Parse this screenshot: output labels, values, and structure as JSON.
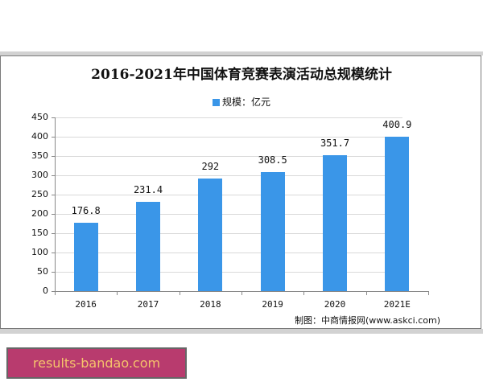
{
  "chart_data": {
    "type": "bar",
    "title": "2016-2021年中国体育竞赛表演活动总规模统计",
    "legend": [
      "规模：亿元"
    ],
    "legend_position": "top",
    "categories": [
      "2016",
      "2017",
      "2018",
      "2019",
      "2020",
      "2021E"
    ],
    "series": [
      {
        "name": "规模：亿元",
        "values": [
          176.8,
          231.4,
          292,
          308.5,
          351.7,
          400.9
        ]
      }
    ],
    "value_labels": [
      "176.8",
      "231.4",
      "292",
      "308.5",
      "351.7",
      "400.9"
    ],
    "xlabel": "",
    "ylabel": "",
    "ylim": [
      0,
      450
    ],
    "yticks": [
      "0",
      "50",
      "100",
      "150",
      "200",
      "250",
      "300",
      "350",
      "400",
      "450"
    ],
    "grid": true,
    "bar_color": "#3a96e8"
  },
  "source": "制图：中商情报网(www.askci.com)",
  "banner": {
    "text": "results-bandao.com"
  },
  "colors": {
    "bar": "#3a96e8",
    "banner_bg": "#b83b6e",
    "banner_text": "#f5c26b"
  }
}
